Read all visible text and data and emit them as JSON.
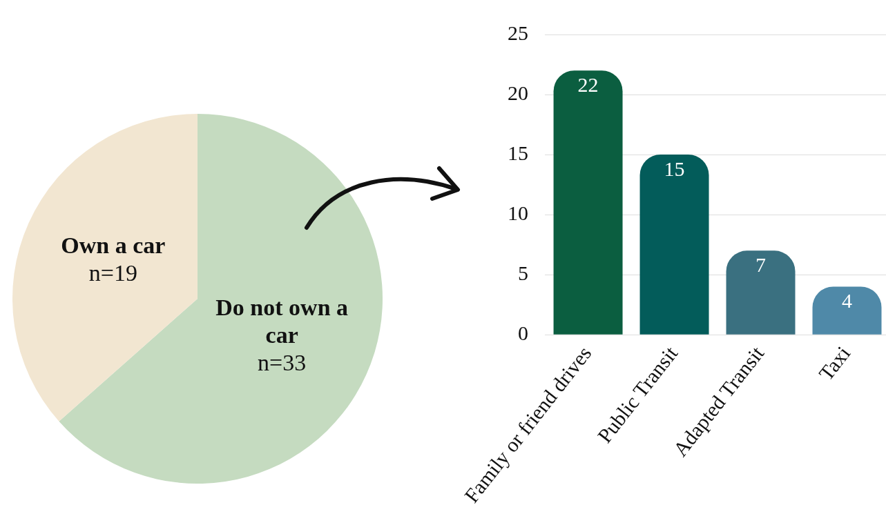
{
  "chart_data": [
    {
      "type": "pie",
      "categories": [
        "Do not own a car",
        "Own a car"
      ],
      "values": [
        33,
        19
      ],
      "colors": [
        "#c5dbc0",
        "#f2e6d1"
      ],
      "value_labels": [
        "n=33",
        "n=19"
      ]
    },
    {
      "type": "bar",
      "categories": [
        "Family or friend drives",
        "Public Transit",
        "Adapted Transit",
        "Taxi"
      ],
      "values": [
        22,
        15,
        7,
        4
      ],
      "colors": [
        "#0b5e40",
        "#035c5a",
        "#3a7080",
        "#4f89a8"
      ],
      "ylim": [
        0,
        25
      ],
      "yticks": [
        0,
        5,
        10,
        15,
        20,
        25
      ],
      "grid": "y",
      "data_labels": true
    }
  ]
}
